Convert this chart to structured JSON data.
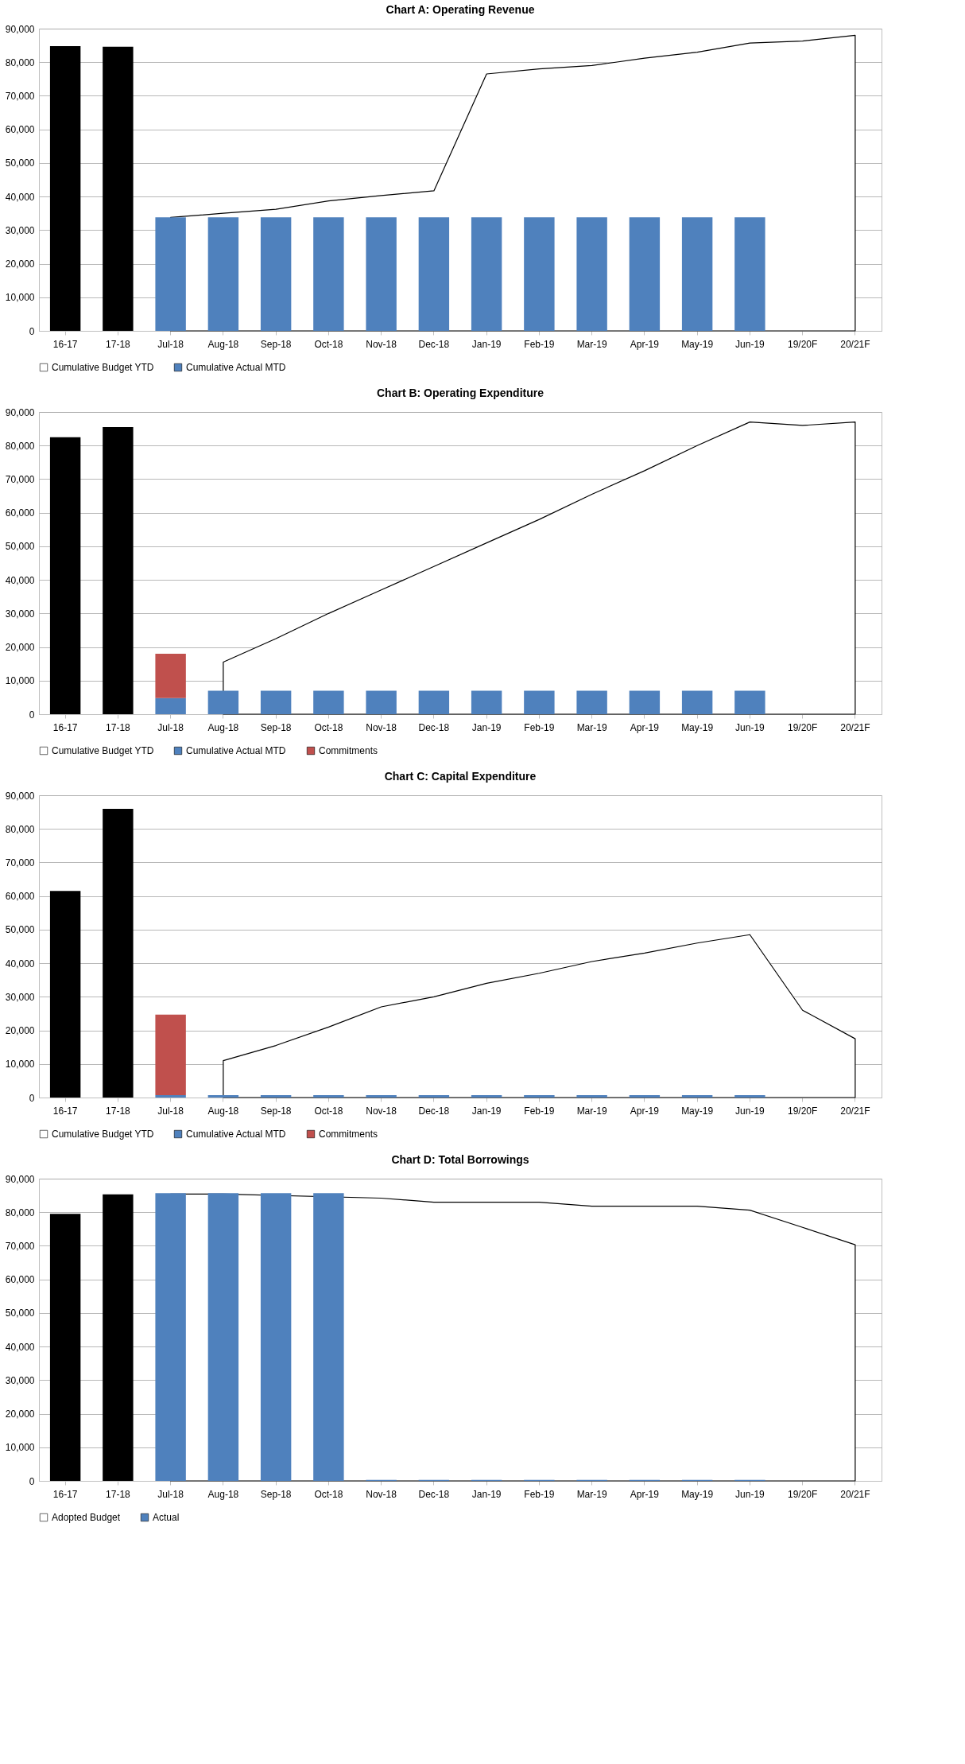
{
  "chart_data": [
    {
      "type": "bar",
      "title": "Chart A: Operating Revenue",
      "categories": [
        "16-17",
        "17-18",
        "Jul-18",
        "Aug-18",
        "Sep-18",
        "Oct-18",
        "Nov-18",
        "Dec-18",
        "Jan-19",
        "Feb-19",
        "Mar-19",
        "Apr-19",
        "May-19",
        "Jun-19",
        "19/20F",
        "20/21F"
      ],
      "legend": "bottom",
      "grid": "y",
      "ylim": [
        0,
        90000
      ],
      "yticks": [
        0,
        {
          "value": 10000,
          "label": "10,000"
        },
        {
          "value": 20000,
          "label": "20,000"
        },
        {
          "value": 30000,
          "label": "30,000"
        },
        {
          "value": 40000,
          "label": "40,000"
        },
        {
          "value": 50000,
          "label": "50,000"
        },
        {
          "value": 60000,
          "label": "60,000"
        },
        {
          "value": 70000,
          "label": "70,000"
        },
        {
          "value": 80000,
          "label": "80,000"
        },
        {
          "value": 90000,
          "label": "90,000"
        }
      ],
      "series": [
        {
          "name": "Cumulative Budget YTD",
          "type": "area",
          "color": "#ffffff",
          "values": [
            null,
            null,
            33800,
            35000,
            36200,
            38700,
            40300,
            41700,
            76500,
            78000,
            79000,
            81200,
            83000,
            85700,
            86300,
            88000
          ]
        },
        {
          "name": "Cumulative Actual MTD",
          "color": "#4f81bd",
          "colors": [
            "#000000",
            "#000000",
            "#4f81bd",
            "#4f81bd",
            "#4f81bd",
            "#4f81bd",
            "#4f81bd",
            "#4f81bd",
            "#4f81bd",
            "#4f81bd",
            "#4f81bd",
            "#4f81bd",
            "#4f81bd",
            "#4f81bd",
            "#4f81bd",
            "#4f81bd"
          ],
          "values": [
            84800,
            84600,
            33800,
            33800,
            33800,
            33800,
            33800,
            33800,
            33800,
            33800,
            33800,
            33800,
            33800,
            33800,
            null,
            null
          ]
        }
      ]
    },
    {
      "type": "bar",
      "title": "Chart B: Operating Expenditure",
      "categories": [
        "16-17",
        "17-18",
        "Jul-18",
        "Aug-18",
        "Sep-18",
        "Oct-18",
        "Nov-18",
        "Dec-18",
        "Jan-19",
        "Feb-19",
        "Mar-19",
        "Apr-19",
        "May-19",
        "Jun-19",
        "19/20F",
        "20/21F"
      ],
      "legend": "bottom",
      "grid": "y",
      "ylim": [
        0,
        90000
      ],
      "yticks": [
        0,
        {
          "value": 10000,
          "label": "10,000"
        },
        {
          "value": 20000,
          "label": "20,000"
        },
        {
          "value": 30000,
          "label": "30,000"
        },
        {
          "value": 40000,
          "label": "40,000"
        },
        {
          "value": 50000,
          "label": "50,000"
        },
        {
          "value": 60000,
          "label": "60,000"
        },
        {
          "value": 70000,
          "label": "70,000"
        },
        {
          "value": 80000,
          "label": "80,000"
        },
        {
          "value": 90000,
          "label": "90,000"
        }
      ],
      "series": [
        {
          "name": "Cumulative Budget YTD",
          "type": "area",
          "color": "#ffffff",
          "values": [
            null,
            null,
            null,
            15500,
            22500,
            30000,
            37000,
            44000,
            51000,
            58000,
            65500,
            72500,
            80000,
            87000,
            86000,
            87000
          ]
        },
        {
          "name": "Cumulative Actual MTD",
          "color": "#4f81bd",
          "colors": [
            "#000000",
            "#000000",
            "#4f81bd",
            "#4f81bd",
            "#4f81bd",
            "#4f81bd",
            "#4f81bd",
            "#4f81bd",
            "#4f81bd",
            "#4f81bd",
            "#4f81bd",
            "#4f81bd",
            "#4f81bd",
            "#4f81bd",
            "#4f81bd",
            "#4f81bd"
          ],
          "values": [
            82500,
            85500,
            4800,
            7000,
            7000,
            7000,
            7000,
            7000,
            7000,
            7000,
            7000,
            7000,
            7000,
            7000,
            null,
            null
          ]
        },
        {
          "name": "Commitments",
          "color": "#c0504d",
          "values": [
            null,
            null,
            13200,
            null,
            null,
            null,
            null,
            null,
            null,
            null,
            null,
            null,
            null,
            null,
            null,
            null
          ],
          "base": [
            null,
            null,
            4800,
            null,
            null,
            null,
            null,
            null,
            null,
            null,
            null,
            null,
            null,
            null,
            null,
            null
          ]
        }
      ]
    },
    {
      "type": "bar",
      "title": "Chart C: Capital Expenditure",
      "categories": [
        "16-17",
        "17-18",
        "Jul-18",
        "Aug-18",
        "Sep-18",
        "Oct-18",
        "Nov-18",
        "Dec-18",
        "Jan-19",
        "Feb-19",
        "Mar-19",
        "Apr-19",
        "May-19",
        "Jun-19",
        "19/20F",
        "20/21F"
      ],
      "legend": "bottom",
      "grid": "y",
      "ylim": [
        0,
        90000
      ],
      "yticks": [
        0,
        {
          "value": 10000,
          "label": "10,000"
        },
        {
          "value": 20000,
          "label": "20,000"
        },
        {
          "value": 30000,
          "label": "30,000"
        },
        {
          "value": 40000,
          "label": "40,000"
        },
        {
          "value": 50000,
          "label": "50,000"
        },
        {
          "value": 60000,
          "label": "60,000"
        },
        {
          "value": 70000,
          "label": "70,000"
        },
        {
          "value": 80000,
          "label": "80,000"
        },
        {
          "value": 90000,
          "label": "90,000"
        }
      ],
      "series": [
        {
          "name": "Cumulative Budget YTD",
          "type": "area",
          "color": "#ffffff",
          "values": [
            null,
            null,
            null,
            11000,
            15500,
            21000,
            27000,
            30000,
            34000,
            37000,
            40500,
            43000,
            46000,
            48500,
            26000,
            17500
          ]
        },
        {
          "name": "Cumulative Actual MTD",
          "color": "#4f81bd",
          "colors": [
            "#000000",
            "#000000",
            "#4f81bd",
            "#4f81bd",
            "#4f81bd",
            "#4f81bd",
            "#4f81bd",
            "#4f81bd",
            "#4f81bd",
            "#4f81bd",
            "#4f81bd",
            "#4f81bd",
            "#4f81bd",
            "#4f81bd",
            "#4f81bd",
            "#4f81bd"
          ],
          "values": [
            61500,
            86000,
            700,
            700,
            700,
            700,
            700,
            700,
            700,
            700,
            700,
            700,
            700,
            700,
            null,
            null
          ]
        },
        {
          "name": "Commitments",
          "color": "#c0504d",
          "values": [
            null,
            null,
            24000,
            null,
            null,
            null,
            null,
            null,
            null,
            null,
            null,
            null,
            null,
            null,
            null,
            null
          ],
          "base": [
            null,
            null,
            700,
            null,
            null,
            null,
            null,
            null,
            null,
            null,
            null,
            null,
            null,
            null,
            null,
            null
          ]
        }
      ]
    },
    {
      "type": "bar",
      "title": "Chart D: Total Borrowings",
      "categories": [
        "16-17",
        "17-18",
        "Jul-18",
        "Aug-18",
        "Sep-18",
        "Oct-18",
        "Nov-18",
        "Dec-18",
        "Jan-19",
        "Feb-19",
        "Mar-19",
        "Apr-19",
        "May-19",
        "Jun-19",
        "19/20F",
        "20/21F"
      ],
      "legend": "bottom",
      "grid": "y",
      "ylim": [
        0,
        90000
      ],
      "yticks": [
        0,
        {
          "value": 10000,
          "label": "10,000"
        },
        {
          "value": 20000,
          "label": "20,000"
        },
        {
          "value": 30000,
          "label": "30,000"
        },
        {
          "value": 40000,
          "label": "40,000"
        },
        {
          "value": 50000,
          "label": "50,000"
        },
        {
          "value": 60000,
          "label": "60,000"
        },
        {
          "value": 70000,
          "label": "70,000"
        },
        {
          "value": 80000,
          "label": "80,000"
        },
        {
          "value": 90000,
          "label": "90,000"
        }
      ],
      "series": [
        {
          "name": "Adopted Budget",
          "type": "area",
          "color": "#ffffff",
          "values": [
            null,
            null,
            85400,
            85400,
            null,
            null,
            84200,
            83000,
            83000,
            83000,
            81800,
            81800,
            81800,
            80600,
            75500,
            70300
          ]
        },
        {
          "name": "Actual",
          "color": "#4f81bd",
          "colors": [
            "#000000",
            "#000000",
            "#4f81bd",
            "#4f81bd",
            "#4f81bd",
            "#4f81bd",
            "#4f81bd",
            "#4f81bd",
            "#4f81bd",
            "#4f81bd",
            "#4f81bd",
            "#4f81bd",
            "#4f81bd",
            "#4f81bd",
            "#4f81bd",
            "#4f81bd"
          ],
          "values": [
            79500,
            85300,
            85700,
            85700,
            85700,
            85700,
            300,
            300,
            300,
            300,
            300,
            300,
            300,
            300,
            null,
            null
          ]
        }
      ]
    }
  ]
}
